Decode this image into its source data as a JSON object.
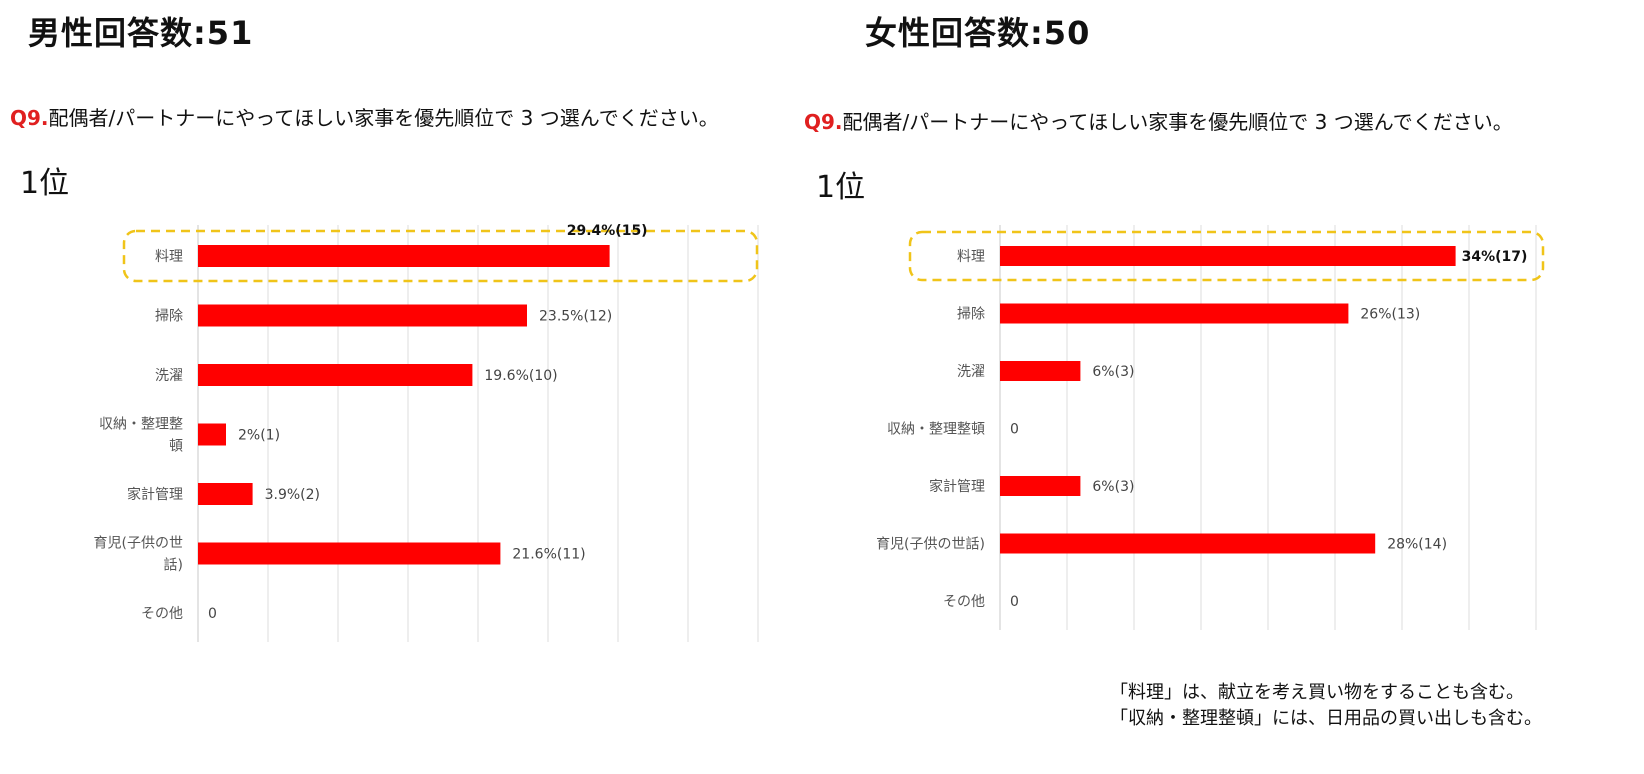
{
  "bar_color": "#ff0000",
  "highlight_color": "#f0c419",
  "grid_color": "#dddddd",
  "panels": [
    {
      "count_title": "男性回答数:51",
      "question_number": "Q9.",
      "question_text": "配偶者/パートナーにやってほしい家事を優先順位で 3 つ選んでください。",
      "rank_label": "1位"
    },
    {
      "count_title": "女性回答数:50",
      "question_number": "Q9.",
      "question_text": "配偶者/パートナーにやってほしい家事を優先順位で 3 つ選んでください。",
      "rank_label": "1位"
    }
  ],
  "chart_data": [
    {
      "type": "bar",
      "orientation": "horizontal",
      "title": "",
      "xlabel": "",
      "ylabel": "",
      "xlim": [
        0,
        40
      ],
      "grid": true,
      "highlight_category": "料理",
      "categories": [
        "料理",
        "掃除",
        "洗濯",
        "収納・整理整頓",
        "家計管理",
        "育児(子供の世話)",
        "その他"
      ],
      "category_lines": [
        [
          "料理"
        ],
        [
          "掃除"
        ],
        [
          "洗濯"
        ],
        [
          "収納・整理整",
          "頓"
        ],
        [
          "家計管理"
        ],
        [
          "育児(子供の世",
          "話)"
        ],
        [
          "その他"
        ]
      ],
      "values": [
        29.4,
        23.5,
        19.6,
        2,
        3.9,
        21.6,
        0
      ],
      "data_labels": [
        "29.4%(15)",
        "23.5%(12)",
        "19.6%(10)",
        "2%(1)",
        "3.9%(2)",
        "21.6%(11)",
        "0"
      ]
    },
    {
      "type": "bar",
      "orientation": "horizontal",
      "title": "",
      "xlabel": "",
      "ylabel": "",
      "xlim": [
        0,
        40
      ],
      "grid": true,
      "highlight_category": "料理",
      "categories": [
        "料理",
        "掃除",
        "洗濯",
        "収納・整理整頓",
        "家計管理",
        "育児(子供の世話)",
        "その他"
      ],
      "category_lines": [
        [
          "料理"
        ],
        [
          "掃除"
        ],
        [
          "洗濯"
        ],
        [
          "収納・整理整頓"
        ],
        [
          "家計管理"
        ],
        [
          "育児(子供の世話)"
        ],
        [
          "その他"
        ]
      ],
      "values": [
        34,
        26,
        6,
        0,
        6,
        28,
        0
      ],
      "data_labels": [
        "34%(17)",
        "26%(13)",
        "6%(3)",
        "0",
        "6%(3)",
        "28%(14)",
        "0"
      ]
    }
  ],
  "notes": [
    "「料理」は、献立を考え買い物をすることも含む。",
    "「収納・整理整頓」には、日用品の買い出しも含む。"
  ]
}
